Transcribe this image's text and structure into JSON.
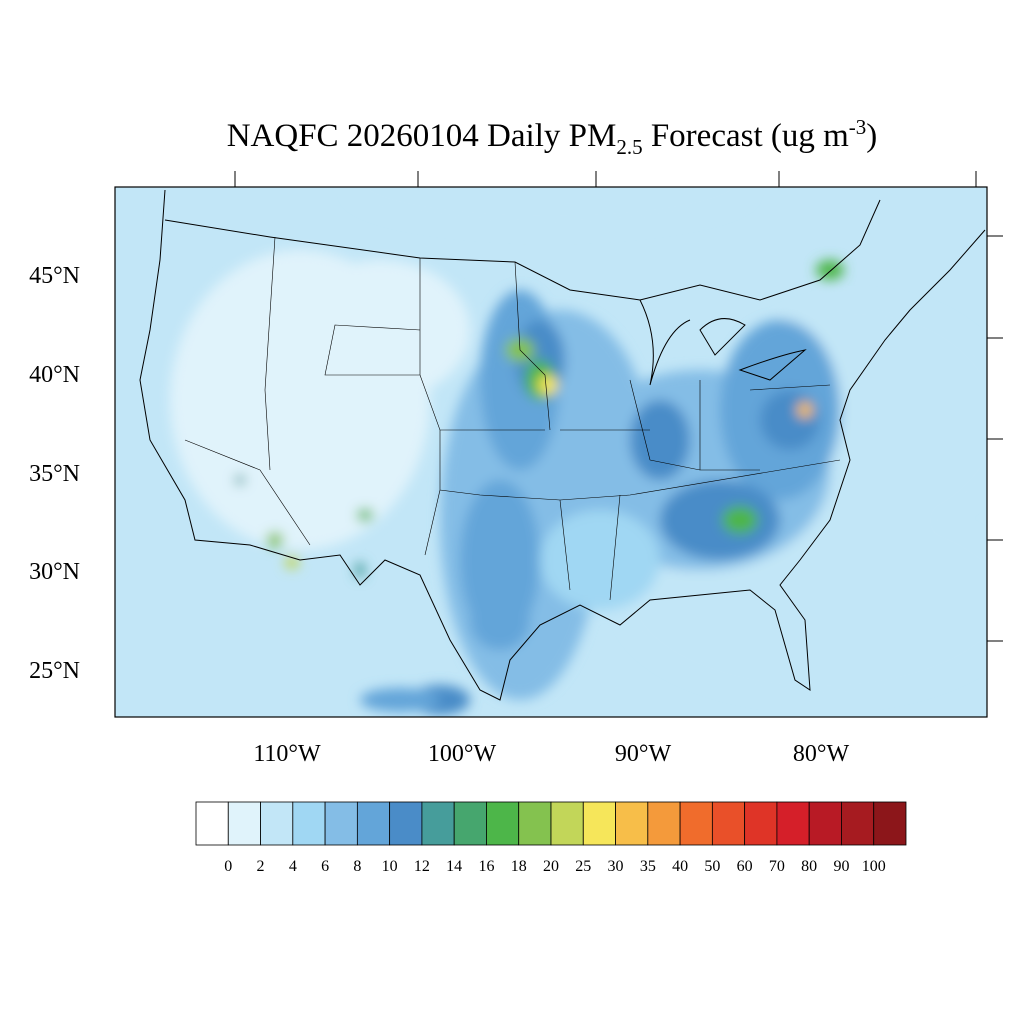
{
  "header": {
    "title_main": "NAQFC 20260104 Daily PM",
    "title_sub": "2.5",
    "title_after": " Forecast (ug m",
    "title_sup": "-3",
    "title_end": ")"
  },
  "map": {
    "lat_labels": [
      "45°N",
      "40°N",
      "35°N",
      "30°N",
      "25°N"
    ],
    "lon_labels": [
      "110°W",
      "100°W",
      "90°W",
      "80°W"
    ]
  },
  "colorbar": {
    "levels": [
      0,
      2,
      4,
      6,
      8,
      10,
      12,
      14,
      16,
      18,
      20,
      25,
      30,
      35,
      40,
      50,
      60,
      70,
      80,
      90,
      100
    ],
    "colors": [
      "#ffffff",
      "#e0f3fb",
      "#c2e6f7",
      "#a0d7f3",
      "#84bde6",
      "#63a5d9",
      "#4a8cc8",
      "#469d9b",
      "#46a66e",
      "#4db649",
      "#84c24f",
      "#c2d659",
      "#f6e65a",
      "#f7be49",
      "#f49a3b",
      "#f06c2c",
      "#e95029",
      "#df3427",
      "#d51f29",
      "#b81a25",
      "#a61b20",
      "#8c161a"
    ]
  }
}
